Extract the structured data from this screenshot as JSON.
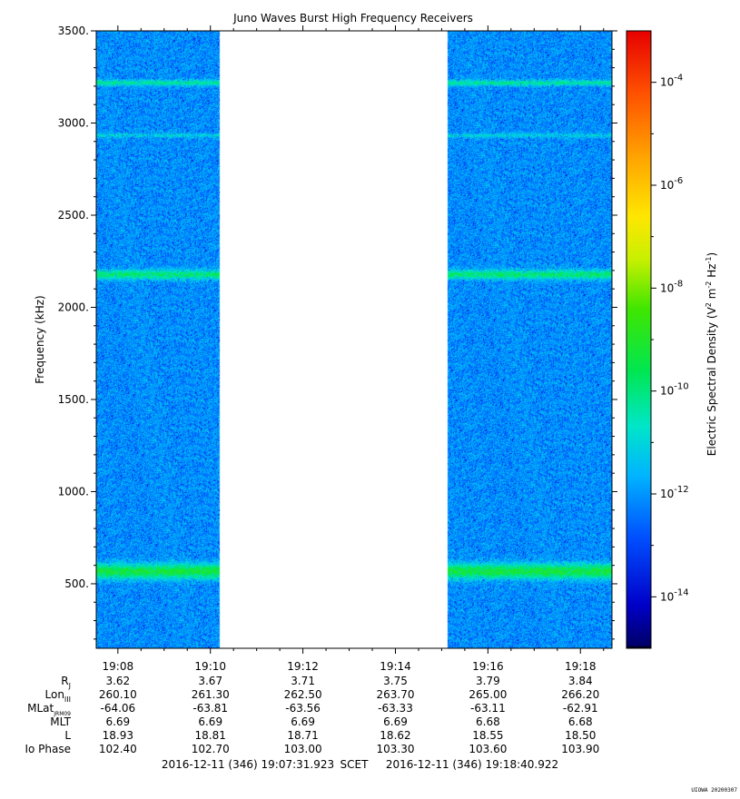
{
  "chart_data": {
    "type": "heatmap",
    "title": "Juno Waves Burst High Frequency Receivers",
    "ylabel": "Frequency (kHz)",
    "ylim": [
      150,
      3500
    ],
    "y_ticks": [
      500,
      1000,
      1500,
      2000,
      2500,
      3000,
      3500
    ],
    "y_tick_labels": [
      "500.",
      "1000.",
      "1500.",
      "2000.",
      "2500.",
      "3000.",
      "3500."
    ],
    "x_scet_range": [
      "19:07:31.923",
      "19:18:40.922"
    ],
    "x_ticks": [
      "19:08",
      "19:10",
      "19:12",
      "19:14",
      "19:16",
      "19:18"
    ],
    "data_gaps": [
      {
        "start": "19:10:12",
        "end": "19:15:07"
      }
    ],
    "colorbar": {
      "label": "Electric Spectral Density (V² m⁻² Hz⁻¹)",
      "label_base": "Electric Spectral Density (V",
      "label_sup1": "2",
      "label_mid": " m",
      "label_sup2": "-2",
      "label_mid2": " Hz",
      "label_sup3": "-1",
      "label_end": ")",
      "scale": "log",
      "range_exponents": [
        -15,
        -3
      ],
      "tick_exponents": [
        -4,
        -6,
        -8,
        -10,
        -12,
        -14
      ],
      "tick_base": "10",
      "tick_sup": [
        "-4",
        "-6",
        "-8",
        "-10",
        "-12",
        "-14"
      ]
    },
    "background_level_exponent": -12,
    "emission_bands_khz": [
      {
        "center": 570,
        "width": 40,
        "level_exponent": -9.2
      },
      {
        "center": 2180,
        "width": 25,
        "level_exponent": -9.8
      },
      {
        "center": 3220,
        "width": 15,
        "level_exponent": -10.2
      },
      {
        "center": 2935,
        "width": 12,
        "level_exponent": -11.0
      }
    ],
    "ephemeris": {
      "rows": [
        {
          "label": "R",
          "sub": "J",
          "values": [
            "3.62",
            "3.67",
            "3.71",
            "3.75",
            "3.79",
            "3.84"
          ]
        },
        {
          "label": "Lon",
          "sub": "III",
          "values": [
            "260.10",
            "261.30",
            "262.50",
            "263.70",
            "265.00",
            "266.20"
          ]
        },
        {
          "label": "MLat",
          "sub": "JRM09",
          "values": [
            "-64.06",
            "-63.81",
            "-63.56",
            "-63.33",
            "-63.11",
            "-62.91"
          ]
        },
        {
          "label": "MLT",
          "sub": "",
          "values": [
            "6.69",
            "6.69",
            "6.69",
            "6.69",
            "6.68",
            "6.68"
          ]
        },
        {
          "label": "L",
          "sub": "",
          "values": [
            "18.93",
            "18.81",
            "18.71",
            "18.62",
            "18.55",
            "18.50"
          ]
        },
        {
          "label": "Io Phase",
          "sub": "",
          "values": [
            "102.40",
            "102.70",
            "103.00",
            "103.30",
            "103.60",
            "103.90"
          ]
        }
      ]
    },
    "footer": {
      "start": "2016-12-11 (346) 19:07:31.923",
      "scet_label": "SCET",
      "end": "2016-12-11 (346) 19:18:40.922"
    },
    "stamp": "UIOWA 20200307"
  }
}
